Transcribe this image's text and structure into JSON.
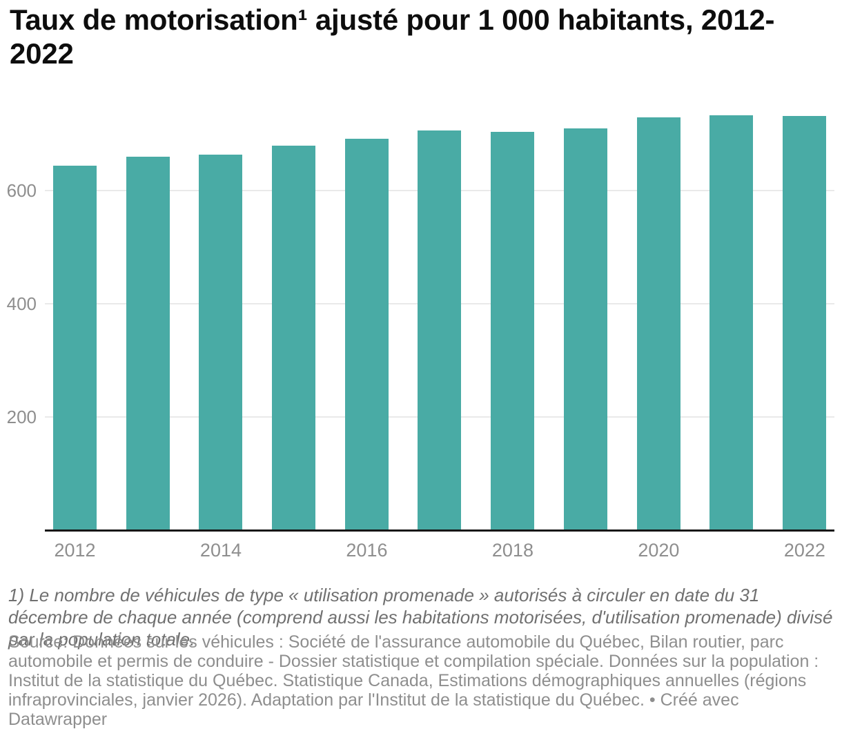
{
  "header": {
    "title": "Taux de motorisation¹ ajusté pour 1 000 habitants, 2012-2022"
  },
  "chart_data": {
    "type": "bar",
    "title": "Taux de motorisation¹ ajusté pour 1 000 habitants, 2012-2022",
    "categories": [
      2012,
      2013,
      2014,
      2015,
      2016,
      2017,
      2018,
      2019,
      2020,
      2021,
      2022
    ],
    "values": [
      645,
      661,
      664,
      680,
      692,
      707,
      704,
      711,
      730,
      734,
      732
    ],
    "xlabel": "",
    "ylabel": "",
    "yticks": [
      200,
      400,
      600
    ],
    "x_tick_labels": [
      "2012",
      "2014",
      "2016",
      "2018",
      "2020",
      "2022"
    ],
    "ylim": [
      0,
      755
    ],
    "bar_color": "#49aba5",
    "gridline_color": "#e9e9e9",
    "axis_label_color": "#8e8e8e",
    "grid": "horizontal",
    "legend": "none"
  },
  "footer": {
    "footnote": "1) Le nombre de véhicules de type « utilisation promenade » autorisés à circuler en date du 31 décembre de chaque année (comprend aussi les habitations motorisées, d'utilisation promenade) divisé par la population totale.",
    "source": "Source: Données sur les véhicules : Société de l'assurance automobile du Québec, Bilan routier, parc automobile et permis de conduire - Dossier statistique et compilation spéciale. Données sur la population : Institut de la statistique du Québec. Statistique Canada, Estimations démographiques annuelles (régions infraprovinciales, janvier 2026). Adaptation par l'Institut de la statistique du Québec. • Créé avec Datawrapper"
  }
}
